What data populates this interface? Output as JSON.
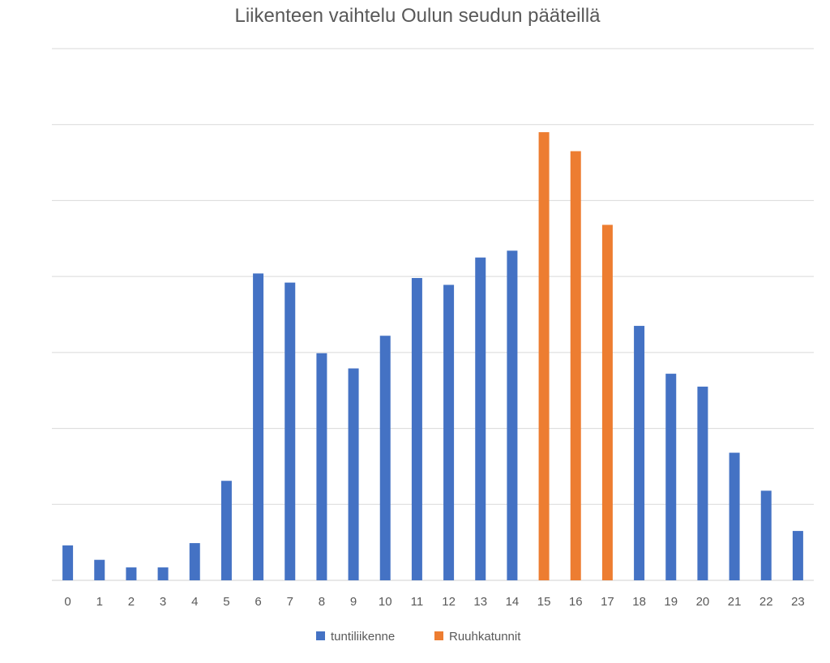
{
  "chart_data": {
    "type": "bar",
    "title": "Liikenteen vaihtelu Oulun seudun pääteillä",
    "xlabel": "",
    "ylabel": "",
    "y_tick_labels_shown": false,
    "ylim": [
      0,
      7
    ],
    "gridlines": true,
    "legend_position": "bottom",
    "categories": [
      "0",
      "1",
      "2",
      "3",
      "4",
      "5",
      "6",
      "7",
      "8",
      "9",
      "10",
      "11",
      "12",
      "13",
      "14",
      "15",
      "16",
      "17",
      "18",
      "19",
      "20",
      "21",
      "22",
      "23"
    ],
    "series": [
      {
        "name": "tuntiliikenne",
        "color": "#4472c4",
        "values": [
          0.46,
          0.27,
          0.17,
          0.17,
          0.49,
          1.31,
          4.04,
          3.92,
          2.99,
          2.79,
          3.22,
          3.98,
          3.89,
          4.25,
          4.34,
          null,
          null,
          null,
          3.35,
          2.72,
          2.55,
          1.68,
          1.18,
          0.65
        ]
      },
      {
        "name": "Ruuhkatunnit",
        "color": "#ed7d31",
        "values": [
          null,
          null,
          null,
          null,
          null,
          null,
          null,
          null,
          null,
          null,
          null,
          null,
          null,
          null,
          null,
          5.9,
          5.65,
          4.68,
          null,
          null,
          null,
          null,
          null,
          null
        ]
      }
    ]
  }
}
